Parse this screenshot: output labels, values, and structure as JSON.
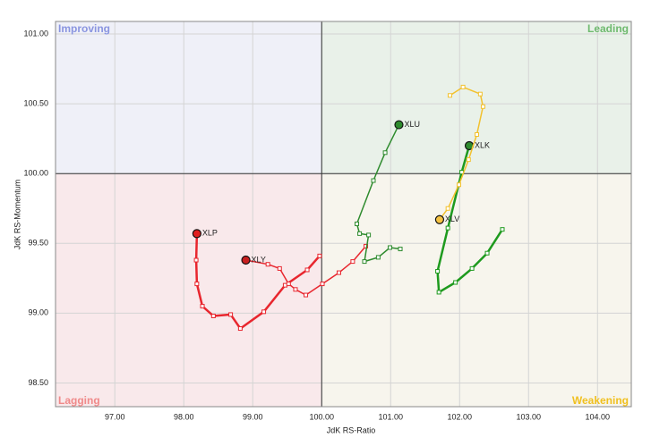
{
  "chart_data": {
    "type": "line",
    "x_label": "JdK RS-Ratio",
    "y_label": "JdK RS-Momentum",
    "xlim": [
      96.14,
      104.49
    ],
    "ylim": [
      98.33,
      101.09
    ],
    "xticks": [
      {
        "value": 97,
        "label": "97.00"
      },
      {
        "value": 98,
        "label": "98.00"
      },
      {
        "value": 99,
        "label": "99.00"
      },
      {
        "value": 100,
        "label": "100.00"
      },
      {
        "value": 101,
        "label": "101.00"
      },
      {
        "value": 102,
        "label": "102.00"
      },
      {
        "value": 103,
        "label": "103.00"
      },
      {
        "value": 104,
        "label": "104.00"
      }
    ],
    "yticks": [
      {
        "value": 98.5,
        "label": "98.50"
      },
      {
        "value": 99,
        "label": "99.00"
      },
      {
        "value": 99.5,
        "label": "99.50"
      },
      {
        "value": 100,
        "label": "100.00"
      },
      {
        "value": 100.5,
        "label": "100.50"
      },
      {
        "value": 101,
        "label": "101.00"
      }
    ],
    "grid": true,
    "center": [
      100,
      100
    ],
    "quadrants": [
      {
        "name": "Improving",
        "color": "#8a95e0",
        "fill": "#eff0f8"
      },
      {
        "name": "Leading",
        "color": "#6fba6f",
        "fill": "#e9f1e9"
      },
      {
        "name": "Lagging",
        "color": "#f08a8a",
        "fill": "#f9e9eb"
      },
      {
        "name": "Weakening",
        "color": "#f0c020",
        "fill": "#f7f5ed"
      }
    ],
    "series": [
      {
        "name": "XLP",
        "color": "#e8262e",
        "head_color": "#e02020",
        "width": 2.5,
        "x": [
          99.97,
          99.79,
          99.47,
          99.16,
          98.82,
          98.68,
          98.43,
          98.27,
          98.19,
          98.18,
          98.19
        ],
        "values": [
          99.41,
          99.31,
          99.2,
          99.01,
          98.89,
          98.99,
          98.98,
          99.05,
          99.21,
          99.38,
          99.57
        ]
      },
      {
        "name": "XLY",
        "color": "#e8262e",
        "head_color": "#c82020",
        "width": 1.5,
        "x": [
          100.64,
          100.45,
          100.25,
          100.01,
          99.77,
          99.62,
          99.52,
          99.39,
          99.22,
          98.9
        ],
        "values": [
          99.48,
          99.37,
          99.29,
          99.21,
          99.13,
          99.17,
          99.21,
          99.32,
          99.35,
          99.38
        ]
      },
      {
        "name": "XLU",
        "color": "#2e8b2e",
        "head_color": "#2d8a2d",
        "width": 1.5,
        "x": [
          101.14,
          100.99,
          100.82,
          100.62,
          100.68,
          100.55,
          100.51,
          100.75,
          100.92,
          101.12
        ],
        "values": [
          99.46,
          99.47,
          99.4,
          99.37,
          99.56,
          99.57,
          99.64,
          99.95,
          100.15,
          100.35
        ]
      },
      {
        "name": "XLK",
        "color": "#1e9a1e",
        "head_color": "#2d8a2d",
        "width": 2.5,
        "x": [
          102.62,
          102.4,
          102.18,
          101.94,
          101.7,
          101.68,
          101.83,
          102.03,
          102.14
        ],
        "values": [
          99.6,
          99.43,
          99.32,
          99.22,
          99.15,
          99.3,
          99.61,
          100.01,
          100.2
        ]
      },
      {
        "name": "XLV",
        "color": "#f2c12e",
        "head_color": "#f5c242",
        "width": 1.5,
        "x": [
          101.86,
          102.05,
          102.3,
          102.34,
          102.25,
          102.13,
          101.99,
          101.83,
          101.71
        ],
        "values": [
          100.56,
          100.62,
          100.57,
          100.48,
          100.28,
          100.1,
          99.92,
          99.75,
          99.67
        ]
      }
    ]
  }
}
